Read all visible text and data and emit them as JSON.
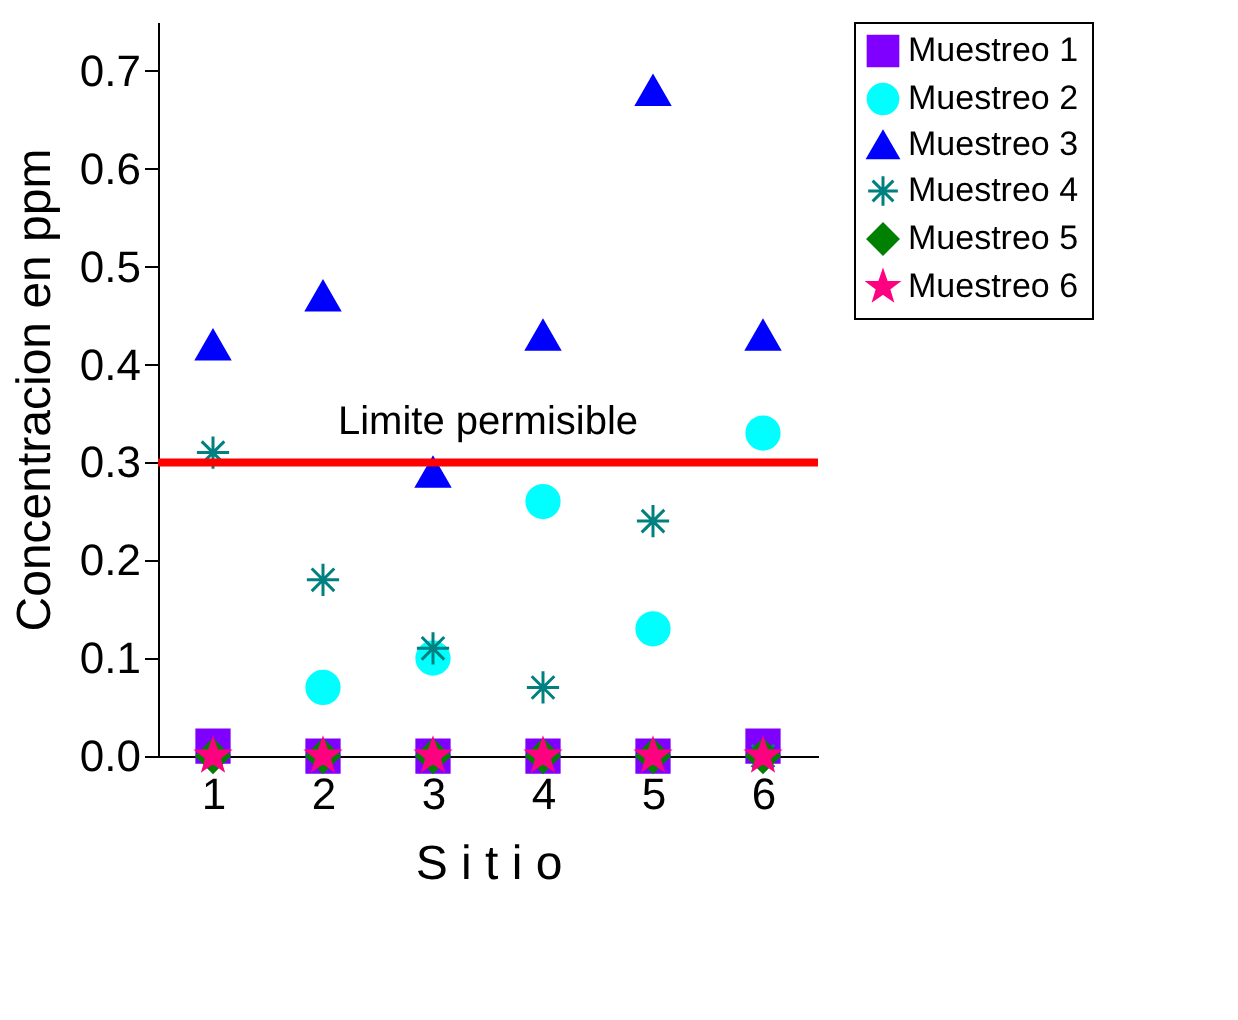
{
  "chart_data": {
    "type": "scatter",
    "xlabel": "S i t i o",
    "ylabel": "Concentracion en ppm",
    "x": [
      1,
      2,
      3,
      4,
      5,
      6
    ],
    "xlim": [
      0.5,
      6.5
    ],
    "xticks": [
      1,
      2,
      3,
      4,
      5,
      6
    ],
    "ylim": [
      0,
      0.75
    ],
    "yticks": [
      {
        "value": 0,
        "label": "0.0"
      },
      {
        "value": 0.1,
        "label": "0.1"
      },
      {
        "value": 0.2,
        "label": "0.2"
      },
      {
        "value": 0.3,
        "label": "0.3"
      },
      {
        "value": 0.4,
        "label": "0.4"
      },
      {
        "value": 0.5,
        "label": "0.5"
      },
      {
        "value": 0.6,
        "label": "0.6"
      },
      {
        "value": 0.7,
        "label": "0.7"
      }
    ],
    "legend": "right",
    "grid": false,
    "series": [
      {
        "name": "Muestreo 1",
        "color": "#8000ff",
        "marker": "square",
        "values": [
          0.01,
          0,
          0,
          0,
          0,
          0.01
        ]
      },
      {
        "name": "Muestreo 2",
        "color": "#00ffff",
        "marker": "circle",
        "values": [
          null,
          0.07,
          0.1,
          0.26,
          0.13,
          0.33
        ]
      },
      {
        "name": "Muestreo 3",
        "color": "#0000ff",
        "marker": "triangle",
        "values": [
          0.42,
          0.47,
          0.29,
          0.43,
          0.68,
          0.43
        ]
      },
      {
        "name": "Muestreo 4",
        "color": "#008080",
        "marker": "cross",
        "values": [
          0.31,
          0.18,
          0.11,
          0.07,
          0.24,
          0
        ]
      },
      {
        "name": "Muestreo 5",
        "color": "#008000",
        "marker": "diamond",
        "values": [
          0,
          0,
          0,
          0,
          0,
          0
        ]
      },
      {
        "name": "Muestreo 6",
        "color": "#ff0080",
        "marker": "star",
        "values": [
          0,
          0,
          0,
          0,
          0,
          0
        ]
      }
    ],
    "ref_lines": [
      {
        "axis": "y",
        "value": 0.3,
        "label": "Limite permisible",
        "color": "#ff0000"
      }
    ]
  }
}
